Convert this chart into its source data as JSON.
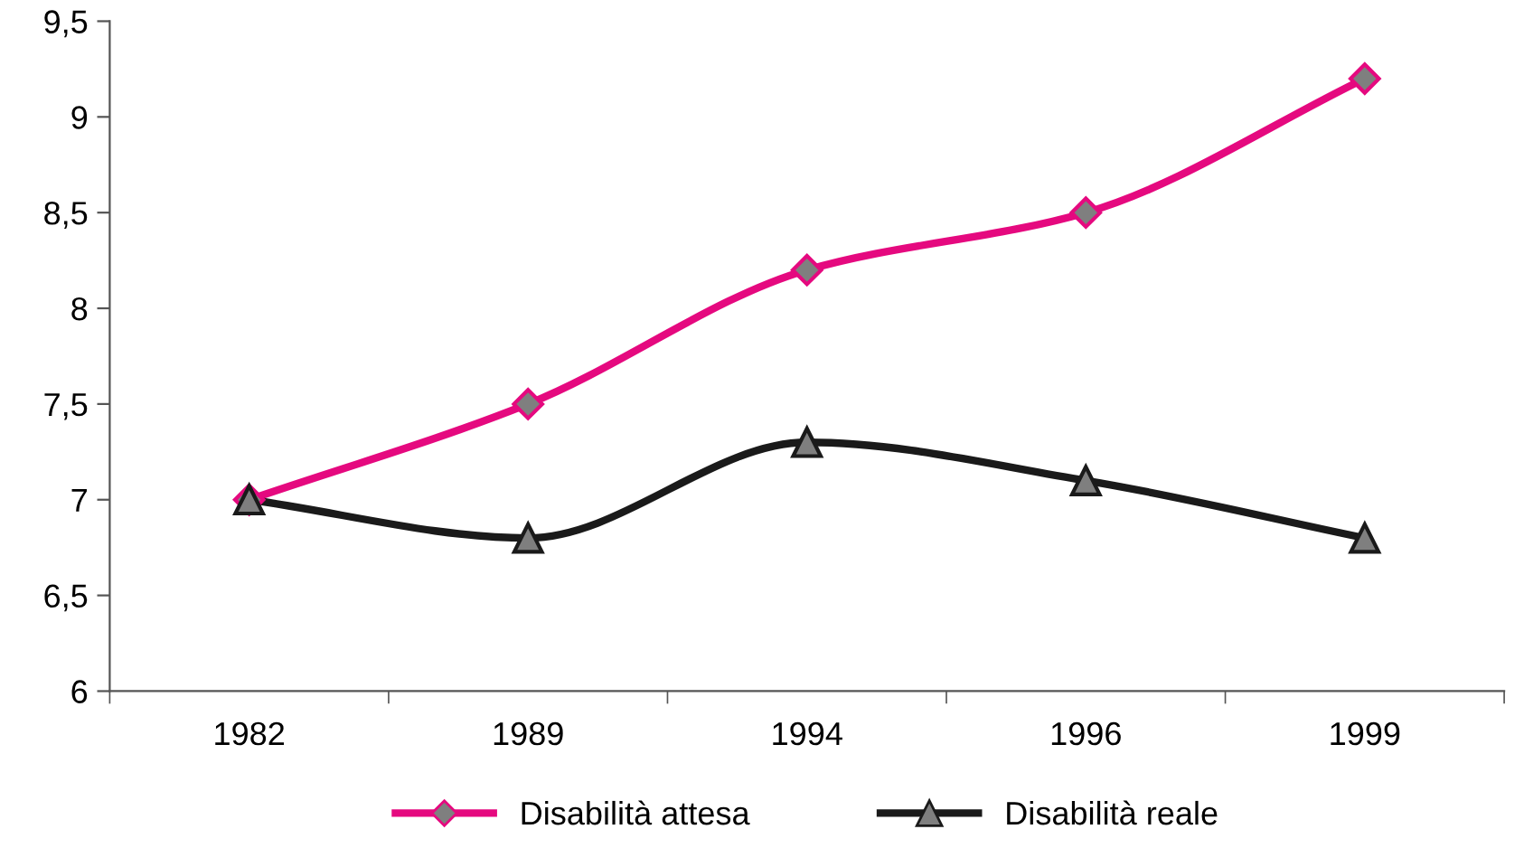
{
  "chart_data": {
    "type": "line",
    "categories": [
      "1982",
      "1989",
      "1994",
      "1996",
      "1999"
    ],
    "series": [
      {
        "name": "Disabilità attesa",
        "color": "#e5097f",
        "marker": "diamond",
        "values": [
          7,
          7.5,
          8.2,
          8.5,
          9.2
        ]
      },
      {
        "name": "Disabilità reale",
        "color": "#1a1a1a",
        "marker": "triangle",
        "values": [
          7,
          6.8,
          7.3,
          7.1,
          6.8
        ]
      }
    ],
    "ylim": [
      6,
      9.5
    ],
    "yticks": [
      6,
      {
        "value": 6.5,
        "label": "6,5"
      },
      7,
      {
        "value": 7.5,
        "label": "7,5"
      },
      8,
      {
        "value": 8.5,
        "label": "8,5"
      },
      9,
      {
        "value": 9.5,
        "label": "9,5"
      }
    ],
    "grid": false,
    "legend": "bottom",
    "line_style": "solid"
  }
}
